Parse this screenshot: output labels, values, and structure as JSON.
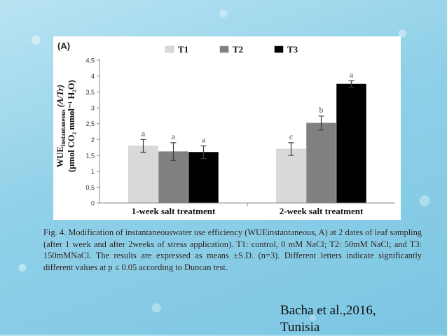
{
  "slide": {
    "caption": "Fig. 4. Modification of instantaneouswater use efficiency (WUEinstantaneous, A) at 2 dates of leaf sampling (after 1 week and after 2weeks of stress application). T1: control, 0 mM NaCl; T2: 50mM NaCl; and T3: 150mMNaCl. The results are expressed as means ±S.D. (n=3). Different letters indicate significantly different values at p ≤ 0.05 according to Duncan test.",
    "citation_line1": "Bacha et al.,2016,",
    "citation_line2": "Tunisia"
  },
  "chart_data": {
    "type": "bar",
    "panel_label": "(A)",
    "ylabel_line1_prefix": "WUE",
    "ylabel_line1_sub": "instantaneous",
    "ylabel_line1_suffix": " (A/Tr)",
    "ylabel_line2": "(µmol CO₂ mmol⁻¹ H₂O)",
    "ylim": [
      0,
      4.5
    ],
    "yticks": [
      "0",
      "0,5",
      "1",
      "1,5",
      "2",
      "2,5",
      "3",
      "3,5",
      "4",
      "4,5"
    ],
    "categories": [
      "1-week salt treatment",
      "2-week salt treatment"
    ],
    "legend_position": "top",
    "grid": false,
    "series": [
      {
        "name": "T1",
        "color": "#d9d9d9",
        "values": [
          1.8,
          1.7
        ],
        "errors": [
          0.2,
          0.2
        ],
        "letters": [
          "a",
          "c"
        ]
      },
      {
        "name": "T2",
        "color": "#808080",
        "values": [
          1.62,
          2.52
        ],
        "errors": [
          0.28,
          0.22
        ],
        "letters": [
          "a",
          "b"
        ]
      },
      {
        "name": "T3",
        "color": "#000000",
        "values": [
          1.6,
          3.75
        ],
        "errors": [
          0.2,
          0.1
        ],
        "letters": [
          "a",
          "a"
        ]
      }
    ]
  }
}
